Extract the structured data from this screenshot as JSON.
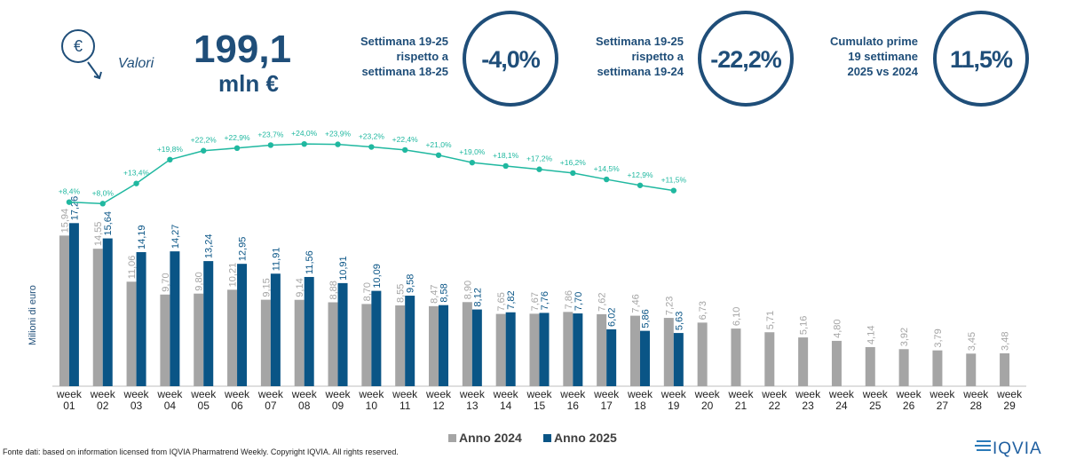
{
  "header": {
    "icon_symbol": "€",
    "icon_label": "Valori",
    "value": "199,1",
    "unit": "mln €"
  },
  "kpis": [
    {
      "lines": [
        "Settimana 19-25",
        "rispetto a",
        "settimana 18-25"
      ],
      "value": "-4,0%"
    },
    {
      "lines": [
        "Settimana 19-25",
        "rispetto a",
        "settimana 19-24"
      ],
      "value": "-22,2%"
    },
    {
      "lines": [
        "Cumulato prime",
        "19 settimane",
        "2025 vs 2024"
      ],
      "value": "11,5%"
    }
  ],
  "footer": "Fonte dati: based on information licensed from IQVIA Pharmatrend Weekly. Copyright IQVIA. All rights reserved.",
  "logo": "IQVIA",
  "chart_data": {
    "type": "bar",
    "y_label": "Milioni di euro",
    "categories": [
      "week 01",
      "week 02",
      "week 03",
      "week 04",
      "week 05",
      "week 06",
      "week 07",
      "week 08",
      "week 09",
      "week 10",
      "week 11",
      "week 12",
      "week 13",
      "week 14",
      "week 15",
      "week 16",
      "week 17",
      "week 18",
      "week 19",
      "week 20",
      "week 21",
      "week 22",
      "week 23",
      "week 24",
      "week 25",
      "week 26",
      "week 27",
      "week 28",
      "week 29"
    ],
    "ylim": [
      0,
      28
    ],
    "y2lim": [
      -41,
      30
    ],
    "series": [
      {
        "name": "Anno 2024",
        "color": "#a5a5a5",
        "values": [
          15.94,
          14.55,
          11.06,
          9.7,
          9.8,
          10.21,
          9.15,
          9.14,
          8.88,
          8.7,
          8.55,
          8.47,
          8.9,
          7.65,
          7.67,
          7.86,
          7.62,
          7.46,
          7.23,
          6.73,
          6.1,
          5.71,
          5.16,
          4.8,
          4.14,
          3.92,
          3.79,
          3.45,
          3.48
        ],
        "value_labels": [
          "15,94",
          "14,55",
          "11,06",
          "9,70",
          "9,80",
          "10,21",
          "9,15",
          "9,14",
          "8,88",
          "8,70",
          "8,55",
          "8,47",
          "8,90",
          "7,65",
          "7,67",
          "7,86",
          "7,62",
          "7,46",
          "7,23",
          "6,73",
          "6,10",
          "5,71",
          "5,16",
          "4,80",
          "4,14",
          "3,92",
          "3,79",
          "3,45",
          "3,48"
        ]
      },
      {
        "name": "Anno 2025",
        "color": "#0a5586",
        "values": [
          17.26,
          15.64,
          14.19,
          14.27,
          13.24,
          12.95,
          11.91,
          11.56,
          10.91,
          10.09,
          9.58,
          8.58,
          8.12,
          7.82,
          7.76,
          7.7,
          6.02,
          5.86,
          5.63,
          null,
          null,
          null,
          null,
          null,
          null,
          null,
          null,
          null,
          null
        ],
        "value_labels": [
          "17,26",
          "15,64",
          "14,19",
          "14,27",
          "13,24",
          "12,95",
          "11,91",
          "11,56",
          "10,91",
          "10,09",
          "9,58",
          "8,58",
          "8,12",
          "7,82",
          "7,76",
          "7,70",
          "6,02",
          "5,86",
          "5,63",
          null,
          null,
          null,
          null,
          null,
          null,
          null,
          null,
          null,
          null
        ]
      },
      {
        "type": "line",
        "axis": "y2",
        "color": "#20b8a0",
        "values": [
          8.4,
          8.0,
          13.4,
          19.8,
          22.2,
          22.9,
          23.7,
          24.0,
          23.9,
          23.2,
          22.4,
          21.0,
          19.0,
          18.1,
          17.2,
          16.2,
          14.5,
          12.9,
          11.5,
          null,
          null,
          null,
          null,
          null,
          null,
          null,
          null,
          null,
          null
        ],
        "value_labels": [
          "+8,4%",
          "+8,0%",
          "+13,4%",
          "+19,8%",
          "+22,2%",
          "+22,9%",
          "+23,7%",
          "+24,0%",
          "+23,9%",
          "+23,2%",
          "+22,4%",
          "+21,0%",
          "+19,0%",
          "+18,1%",
          "+17,2%",
          "+16,2%",
          "+14,5%",
          "+12,9%",
          "+11,5%",
          null,
          null,
          null,
          null,
          null,
          null,
          null,
          null,
          null,
          null
        ]
      }
    ]
  }
}
